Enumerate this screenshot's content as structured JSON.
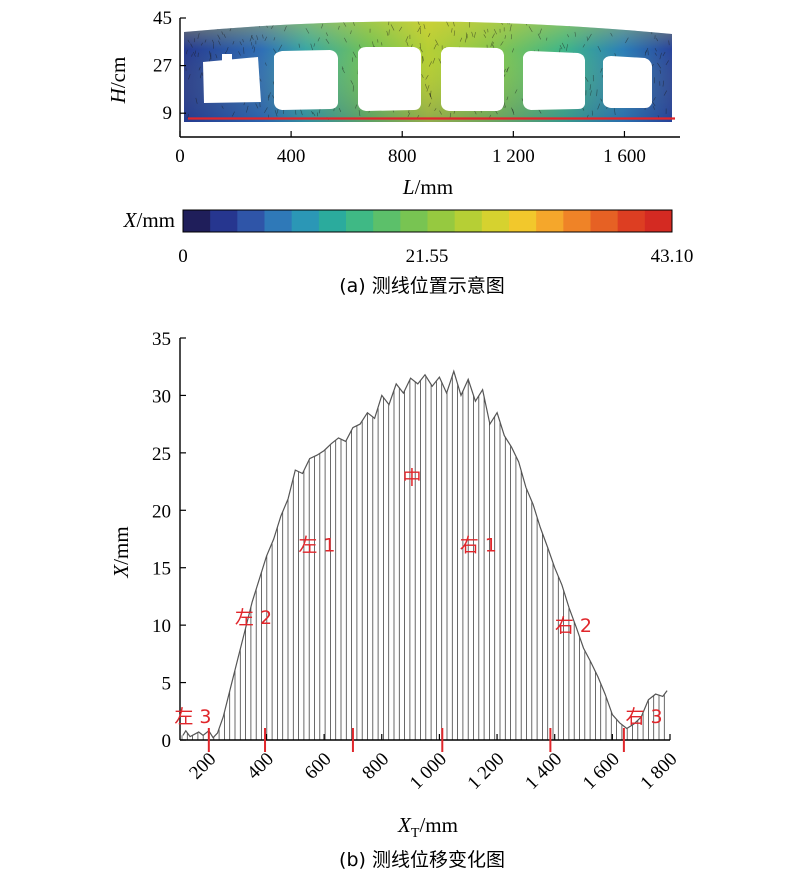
{
  "chart_data": [
    {
      "type": "heatmap",
      "panel": "a",
      "caption": "(a) 测线位置示意图",
      "xlabel": "L/mm",
      "ylabel": "H/cm",
      "x_ticks": [
        "0",
        "400",
        "800",
        "1 200",
        "1 600"
      ],
      "x_tick_values": [
        0,
        400,
        800,
        1200,
        1600
      ],
      "y_ticks": [
        "9",
        "27",
        "45"
      ],
      "y_tick_values": [
        9,
        27,
        45
      ],
      "xlim": [
        0,
        1800
      ],
      "ylim": [
        0,
        45
      ],
      "measurement_line_H": 5,
      "colorbar": {
        "label": "X/mm",
        "min_label": "0",
        "mid_label": "21.55",
        "max_label": "43.10",
        "range": [
          0,
          43.1
        ],
        "colors": [
          "#1f1e5a",
          "#26368f",
          "#2f55a8",
          "#2f79b8",
          "#2b97b6",
          "#2bab9d",
          "#3fb985",
          "#5cc06a",
          "#78c452",
          "#96c940",
          "#b6cf35",
          "#d6d22f",
          "#f2c82c",
          "#f5a72b",
          "#ef8327",
          "#e66124",
          "#dd3e22",
          "#d42a22"
        ]
      }
    },
    {
      "type": "area",
      "panel": "b",
      "caption": "(b) 测线位移变化图",
      "xlabel": "X_T/mm",
      "ylabel": "X/mm",
      "xlim": [
        100,
        1800
      ],
      "ylim": [
        0,
        35
      ],
      "x_ticks": [
        "200",
        "400",
        "600",
        "800",
        "1 000",
        "1 200",
        "1 400",
        "1 600",
        "1 800"
      ],
      "x_tick_values": [
        200,
        400,
        600,
        800,
        1000,
        1200,
        1400,
        1600,
        1800
      ],
      "y_ticks": [
        "0",
        "5",
        "10",
        "15",
        "20",
        "25",
        "30",
        "35"
      ],
      "y_tick_values": [
        0,
        5,
        10,
        15,
        20,
        25,
        30,
        35
      ],
      "series": [
        {
          "x": [
            110,
            120,
            135,
            150,
            165,
            180,
            200,
            215,
            230,
            250,
            275,
            300,
            325,
            350,
            375,
            400,
            425,
            450,
            475,
            500,
            525,
            550,
            575,
            600,
            625,
            650,
            675,
            700,
            725,
            750,
            775,
            800,
            825,
            850,
            875,
            900,
            925,
            950,
            975,
            1000,
            1025,
            1050,
            1075,
            1100,
            1125,
            1150,
            1175,
            1200,
            1225,
            1250,
            1275,
            1300,
            1325,
            1350,
            1375,
            1400,
            1425,
            1450,
            1475,
            1500,
            1525,
            1550,
            1575,
            1600,
            1625,
            1650,
            1675,
            1700,
            1725,
            1750,
            1775,
            1790
          ],
          "y": [
            0.4,
            0.8,
            0.3,
            0.5,
            0.7,
            0.4,
            0.8,
            0.2,
            0.6,
            2.0,
            4.5,
            7.0,
            9.5,
            12.0,
            14.0,
            16.0,
            17.5,
            19.5,
            21.0,
            23.5,
            23.2,
            24.5,
            24.8,
            25.2,
            25.8,
            26.3,
            26.0,
            27.2,
            27.5,
            28.5,
            28.0,
            30.0,
            29.2,
            31.0,
            30.2,
            31.5,
            31.0,
            31.8,
            30.8,
            31.6,
            30.2,
            32.1,
            30.0,
            31.4,
            29.5,
            30.5,
            27.5,
            28.5,
            26.5,
            25.5,
            24.2,
            22.0,
            20.5,
            18.5,
            16.8,
            15.0,
            13.5,
            11.5,
            9.8,
            8.0,
            6.8,
            5.5,
            4.0,
            2.2,
            1.5,
            1.0,
            1.4,
            2.0,
            3.5,
            4.0,
            3.8,
            4.3
          ]
        }
      ],
      "boundary_markers_x": [
        200,
        395,
        700,
        1010,
        1385,
        1640
      ],
      "region_labels": [
        {
          "text": "左 3",
          "x": 145,
          "y": 1.5
        },
        {
          "text": "左 2",
          "x": 355,
          "y": 10.1
        },
        {
          "text": "左 1",
          "x": 575,
          "y": 16.4
        },
        {
          "text": "中",
          "x": 905,
          "y": 22.3
        },
        {
          "text": "右 1",
          "x": 1135,
          "y": 16.4
        },
        {
          "text": "右 2",
          "x": 1465,
          "y": 9.4
        },
        {
          "text": "右 3",
          "x": 1710,
          "y": 1.5
        }
      ]
    }
  ]
}
